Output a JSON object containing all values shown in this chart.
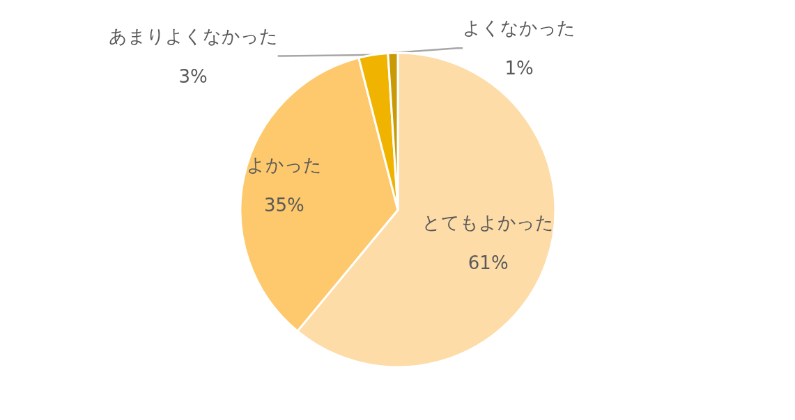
{
  "chart_data": {
    "type": "pie",
    "categories": [
      "とてもよかった",
      "よかった",
      "あまりよくなかった",
      "よくなかった"
    ],
    "values": [
      61,
      35,
      3,
      1
    ],
    "value_labels": [
      "61%",
      "35%",
      "3%",
      "1%"
    ],
    "colors": [
      "#fddca8",
      "#fec96c",
      "#f0b400",
      "#c99a06"
    ]
  }
}
